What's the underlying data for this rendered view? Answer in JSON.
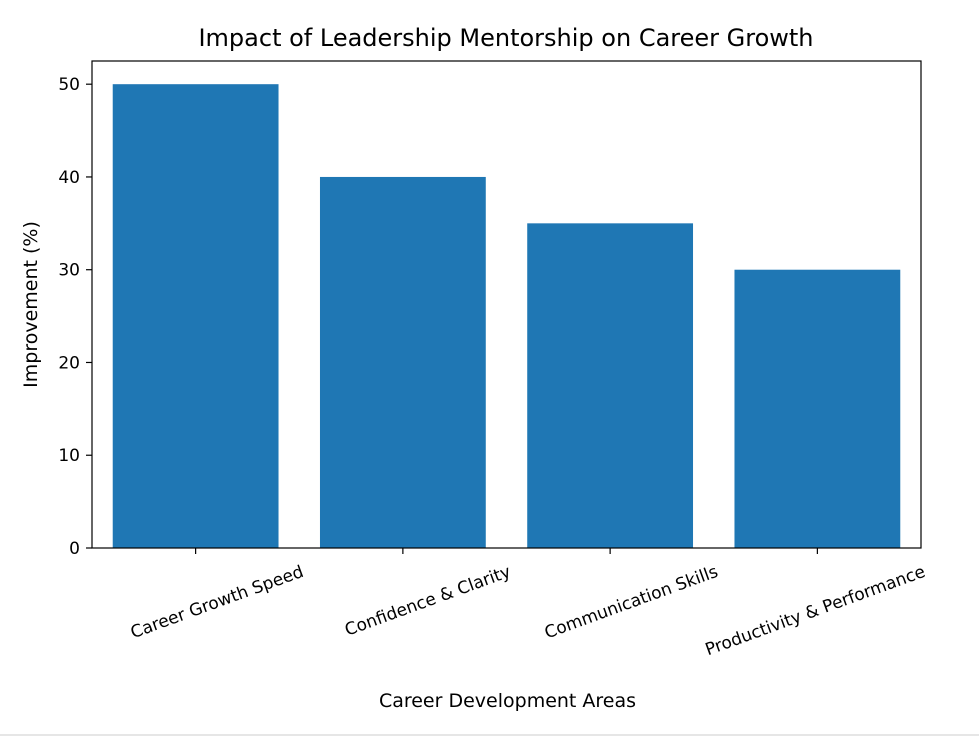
{
  "chart_data": {
    "type": "bar",
    "title": "Impact of Leadership Mentorship on Career Growth",
    "xlabel": "Career Development Areas",
    "ylabel": "Improvement (%)",
    "categories": [
      "Career Growth Speed",
      "Confidence & Clarity",
      "Communication Skills",
      "Productivity & Performance"
    ],
    "values": [
      50,
      40,
      35,
      30
    ],
    "ylim": [
      0,
      52.5
    ],
    "yticks": [
      0,
      10,
      20,
      30,
      40,
      50
    ],
    "bar_color": "#1f77b4",
    "grid": false,
    "legend": "none",
    "xtick_rotation_deg": 20
  }
}
